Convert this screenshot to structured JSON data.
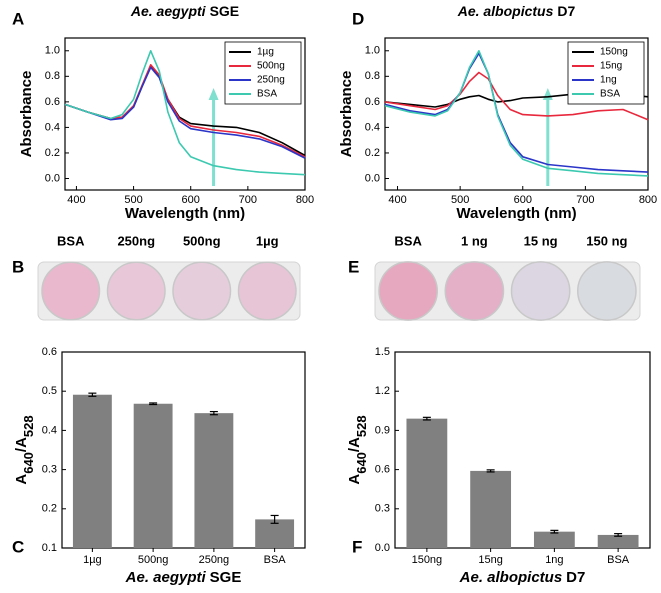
{
  "chart_data": [
    {
      "panel": "A",
      "type": "line",
      "title": [
        "Ae. aegypti",
        "SGE"
      ],
      "x_label": "Wavelength (nm)",
      "y_label": "Absorbance",
      "x": [
        380,
        420,
        460,
        480,
        500,
        515,
        530,
        545,
        560,
        580,
        600,
        640,
        680,
        720,
        760,
        800
      ],
      "series": [
        {
          "name": "1µg",
          "color": "#000000",
          "values": [
            0.58,
            0.52,
            0.47,
            0.48,
            0.56,
            0.72,
            0.88,
            0.8,
            0.62,
            0.48,
            0.43,
            0.41,
            0.4,
            0.36,
            0.28,
            0.18
          ]
        },
        {
          "name": "500ng",
          "color": "#e8283c",
          "values": [
            0.58,
            0.52,
            0.47,
            0.48,
            0.57,
            0.73,
            0.89,
            0.81,
            0.62,
            0.47,
            0.41,
            0.38,
            0.36,
            0.33,
            0.26,
            0.17
          ]
        },
        {
          "name": "250ng",
          "color": "#2b35c8",
          "values": [
            0.58,
            0.52,
            0.46,
            0.47,
            0.56,
            0.72,
            0.87,
            0.79,
            0.6,
            0.45,
            0.39,
            0.36,
            0.34,
            0.31,
            0.25,
            0.16
          ]
        },
        {
          "name": "BSA",
          "color": "#3cc9b0",
          "values": [
            0.58,
            0.52,
            0.47,
            0.5,
            0.62,
            0.82,
            1.0,
            0.84,
            0.52,
            0.28,
            0.17,
            0.1,
            0.07,
            0.05,
            0.04,
            0.03
          ]
        }
      ],
      "xlim": [
        380,
        800
      ],
      "xticks": [
        400,
        500,
        600,
        700,
        800
      ],
      "ylim": [
        -0.09,
        1.1
      ],
      "yticks": [
        {
          "value": 0,
          "label": "0.0"
        },
        0.2,
        0.4,
        0.6,
        0.8,
        {
          "value": 1,
          "label": "1.0"
        }
      ],
      "legend": "top-right"
    },
    {
      "panel": "D",
      "type": "line",
      "title": [
        "Ae. albopictus",
        "D7"
      ],
      "x_label": "Wavelength (nm)",
      "y_label": "Absorbance",
      "x": [
        380,
        420,
        460,
        480,
        500,
        515,
        530,
        545,
        560,
        580,
        600,
        640,
        680,
        720,
        760,
        800
      ],
      "series": [
        {
          "name": "150ng",
          "color": "#000000",
          "values": [
            0.6,
            0.58,
            0.56,
            0.58,
            0.62,
            0.64,
            0.65,
            0.62,
            0.6,
            0.61,
            0.63,
            0.64,
            0.66,
            0.67,
            0.66,
            0.64
          ]
        },
        {
          "name": "15ng",
          "color": "#e8283c",
          "values": [
            0.6,
            0.57,
            0.54,
            0.57,
            0.66,
            0.76,
            0.83,
            0.78,
            0.65,
            0.54,
            0.5,
            0.49,
            0.5,
            0.53,
            0.54,
            0.46
          ]
        },
        {
          "name": "1ng",
          "color": "#2b35c8",
          "values": [
            0.58,
            0.53,
            0.5,
            0.54,
            0.67,
            0.86,
            0.98,
            0.82,
            0.5,
            0.28,
            0.17,
            0.11,
            0.09,
            0.07,
            0.06,
            0.05
          ]
        },
        {
          "name": "BSA",
          "color": "#3cc9b0",
          "values": [
            0.57,
            0.52,
            0.49,
            0.53,
            0.67,
            0.87,
            1.0,
            0.82,
            0.49,
            0.26,
            0.15,
            0.08,
            0.06,
            0.04,
            0.03,
            0.02
          ]
        }
      ],
      "xlim": [
        380,
        800
      ],
      "xticks": [
        400,
        500,
        600,
        700,
        800
      ],
      "ylim": [
        -0.09,
        1.1
      ],
      "yticks": [
        {
          "value": 0,
          "label": "0.0"
        },
        0.2,
        0.4,
        0.6,
        0.8,
        {
          "value": 1,
          "label": "1.0"
        }
      ],
      "legend": "top-right"
    },
    {
      "panel": "B",
      "type": "wells",
      "labels": [
        "BSA",
        "250ng",
        "500ng",
        "1µg"
      ],
      "colors": [
        "#e9b8cc",
        "#e8c8d8",
        "#e6cddb",
        "#e8c5d6"
      ]
    },
    {
      "panel": "E",
      "type": "wells",
      "labels": [
        "BSA",
        "1 ng",
        "15 ng",
        "150 ng"
      ],
      "colors": [
        "#e6a8bf",
        "#e3b0c8",
        "#dcd6e2",
        "#d8dbe0"
      ]
    },
    {
      "panel": "C",
      "type": "bar",
      "x_label": [
        "Ae. aegypti",
        "SGE"
      ],
      "y_label": [
        "A",
        "640",
        "/A",
        "528"
      ],
      "categories": [
        "1µg",
        "500ng",
        "250ng",
        "BSA"
      ],
      "values": [
        0.491,
        0.468,
        0.444,
        0.173
      ],
      "errors": [
        0.004,
        0.002,
        0.004,
        0.01
      ],
      "color": "#808080",
      "ylim": [
        0.1,
        0.6
      ],
      "yticks": [
        0.1,
        0.2,
        0.3,
        0.4,
        0.5,
        0.6
      ]
    },
    {
      "panel": "F",
      "type": "bar",
      "x_label": [
        "Ae. albopictus",
        "D7"
      ],
      "y_label": [
        "A",
        "640",
        "/A",
        "528"
      ],
      "categories": [
        "150ng",
        "15ng",
        "1ng",
        "BSA"
      ],
      "values": [
        0.99,
        0.59,
        0.125,
        0.1
      ],
      "errors": [
        0.01,
        0.008,
        0.01,
        0.01
      ],
      "color": "#808080",
      "ylim": [
        0,
        1.5
      ],
      "yticks": [
        {
          "value": 0,
          "label": "0.0"
        },
        0.3,
        0.6,
        0.9,
        1.2,
        1.5
      ]
    }
  ]
}
